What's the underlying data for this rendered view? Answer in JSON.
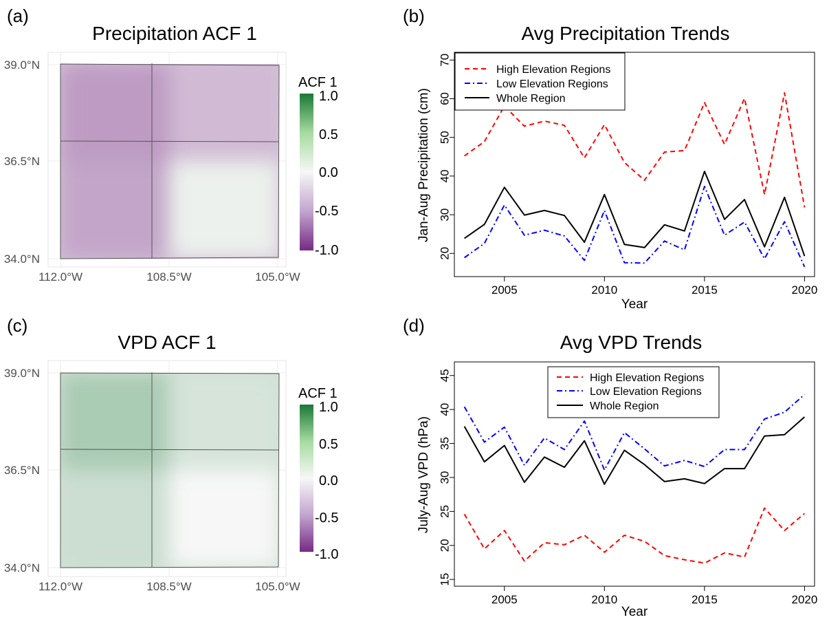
{
  "chart_data": [
    {
      "panel": "(a)",
      "type": "heatmap",
      "title": "Precipitation ACF 1",
      "x_ticks": [
        "112.0°W",
        "108.5°W",
        "105.0°W"
      ],
      "y_ticks": [
        "39.0°N",
        "36.5°N",
        "34.0°N"
      ],
      "colorbar": {
        "title": "ACF 1",
        "ticks": [
          "1.0",
          "0.5",
          "0.0",
          "-0.5",
          "-1.0"
        ],
        "range": [
          -1.0,
          1.0
        ],
        "colors": {
          "low": "#762a83",
          "mid": "#f7f7f7",
          "high": "#1b7837"
        }
      },
      "regions": [
        {
          "name": "north-west",
          "mean_acf": -0.45
        },
        {
          "name": "north-east",
          "mean_acf": -0.3
        },
        {
          "name": "south-west",
          "mean_acf": -0.4
        },
        {
          "name": "south-east",
          "mean_acf": 0.05
        }
      ]
    },
    {
      "panel": "(b)",
      "type": "line",
      "title": "Avg Precipitation Trends",
      "xlabel": "Year",
      "ylabel": "Jan-Aug Precipitation (cm)",
      "xlim": [
        2002.5,
        2020.5
      ],
      "ylim": [
        14,
        72
      ],
      "x_ticks": [
        2005,
        2010,
        2015,
        2020
      ],
      "y_ticks": [
        20,
        30,
        40,
        50,
        60,
        70
      ],
      "x": [
        2003,
        2004,
        2005,
        2006,
        2007,
        2008,
        2009,
        2010,
        2011,
        2012,
        2013,
        2014,
        2015,
        2016,
        2017,
        2018,
        2019,
        2020
      ],
      "legend_position": "top-left",
      "series": [
        {
          "name": "High Elevation Regions",
          "color": "#ff0000",
          "dash": "dashed",
          "values": [
            45.2,
            48.9,
            58.1,
            52.9,
            54.2,
            53.1,
            44.7,
            53.3,
            43.5,
            38.9,
            46.2,
            46.6,
            59.0,
            48.2,
            60.1,
            35.2,
            61.5,
            31.9
          ]
        },
        {
          "name": "Low Elevation Regions",
          "color": "#0000ff",
          "dash": "dashdot",
          "values": [
            18.9,
            22.6,
            32.5,
            24.7,
            26.0,
            24.5,
            18.2,
            31.1,
            17.6,
            17.5,
            23.2,
            20.9,
            37.3,
            24.7,
            28.1,
            18.6,
            28.2,
            16.5
          ]
        },
        {
          "name": "Whole Region",
          "color": "#000000",
          "dash": "solid",
          "values": [
            23.9,
            27.5,
            37.1,
            29.9,
            31.1,
            29.8,
            22.9,
            35.2,
            22.3,
            21.5,
            27.4,
            25.8,
            41.2,
            28.8,
            33.9,
            21.7,
            34.5,
            19.3
          ]
        }
      ]
    },
    {
      "panel": "(c)",
      "type": "heatmap",
      "title": "VPD ACF 1",
      "x_ticks": [
        "112.0°W",
        "108.5°W",
        "105.0°W"
      ],
      "y_ticks": [
        "39.0°N",
        "36.5°N",
        "34.0°N"
      ],
      "colorbar": {
        "title": "ACF 1",
        "ticks": [
          "1.0",
          "0.5",
          "0.0",
          "-0.5",
          "-1.0"
        ],
        "range": [
          -1.0,
          1.0
        ],
        "colors": {
          "low": "#762a83",
          "mid": "#f7f7f7",
          "high": "#1b7837"
        }
      },
      "regions": [
        {
          "name": "north-west",
          "mean_acf": 0.35
        },
        {
          "name": "north-east",
          "mean_acf": 0.15
        },
        {
          "name": "south-west",
          "mean_acf": 0.2
        },
        {
          "name": "south-east",
          "mean_acf": 0.0
        }
      ]
    },
    {
      "panel": "(d)",
      "type": "line",
      "title": "Avg VPD Trends",
      "xlabel": "Year",
      "ylabel": "July-Aug VPD (hPa)",
      "xlim": [
        2002.5,
        2020.5
      ],
      "ylim": [
        14,
        47
      ],
      "x_ticks": [
        2005,
        2010,
        2015,
        2020
      ],
      "y_ticks": [
        15,
        20,
        25,
        30,
        35,
        40,
        45
      ],
      "x": [
        2003,
        2004,
        2005,
        2006,
        2007,
        2008,
        2009,
        2010,
        2011,
        2012,
        2013,
        2014,
        2015,
        2016,
        2017,
        2018,
        2019,
        2020
      ],
      "legend_position": "top-center",
      "series": [
        {
          "name": "High Elevation Regions",
          "color": "#ff0000",
          "dash": "dashed",
          "values": [
            24.6,
            19.5,
            22.2,
            17.7,
            20.4,
            20.1,
            21.5,
            19.0,
            21.5,
            20.6,
            18.5,
            17.9,
            17.4,
            18.9,
            18.3,
            25.5,
            22.2,
            24.7
          ]
        },
        {
          "name": "Low Elevation Regions",
          "color": "#0000ff",
          "dash": "dashdot",
          "values": [
            40.4,
            35.2,
            37.4,
            31.8,
            35.8,
            34.1,
            38.3,
            31.1,
            36.6,
            34.2,
            31.7,
            32.5,
            31.6,
            34.1,
            34.1,
            38.6,
            39.6,
            42.2
          ]
        },
        {
          "name": "Whole Region",
          "color": "#000000",
          "dash": "solid",
          "values": [
            37.5,
            32.3,
            34.7,
            29.3,
            33.0,
            31.5,
            35.4,
            29.0,
            34.0,
            31.9,
            29.4,
            29.8,
            29.1,
            31.3,
            31.3,
            36.1,
            36.3,
            38.9
          ]
        }
      ]
    }
  ]
}
